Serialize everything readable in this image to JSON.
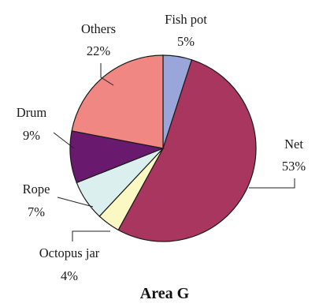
{
  "chart_data": {
    "type": "pie",
    "title": "Area G",
    "slices": [
      {
        "label": "Fish pot",
        "value": 5,
        "value_label": "5%",
        "color": "#9aa6d9"
      },
      {
        "label": "Net",
        "value": 53,
        "value_label": "53%",
        "color": "#a8365f"
      },
      {
        "label": "Octopus jar",
        "value": 4,
        "value_label": "4%",
        "color": "#fbf8c4"
      },
      {
        "label": "Rope",
        "value": 7,
        "value_label": "7%",
        "color": "#dcefef"
      },
      {
        "label": "Drum",
        "value": 9,
        "value_label": "9%",
        "color": "#6a1a6e"
      },
      {
        "label": "Others",
        "value": 22,
        "value_label": "22%",
        "color": "#f08783"
      }
    ],
    "start": "12 o'clock",
    "direction": "clockwise",
    "legend": "none"
  }
}
